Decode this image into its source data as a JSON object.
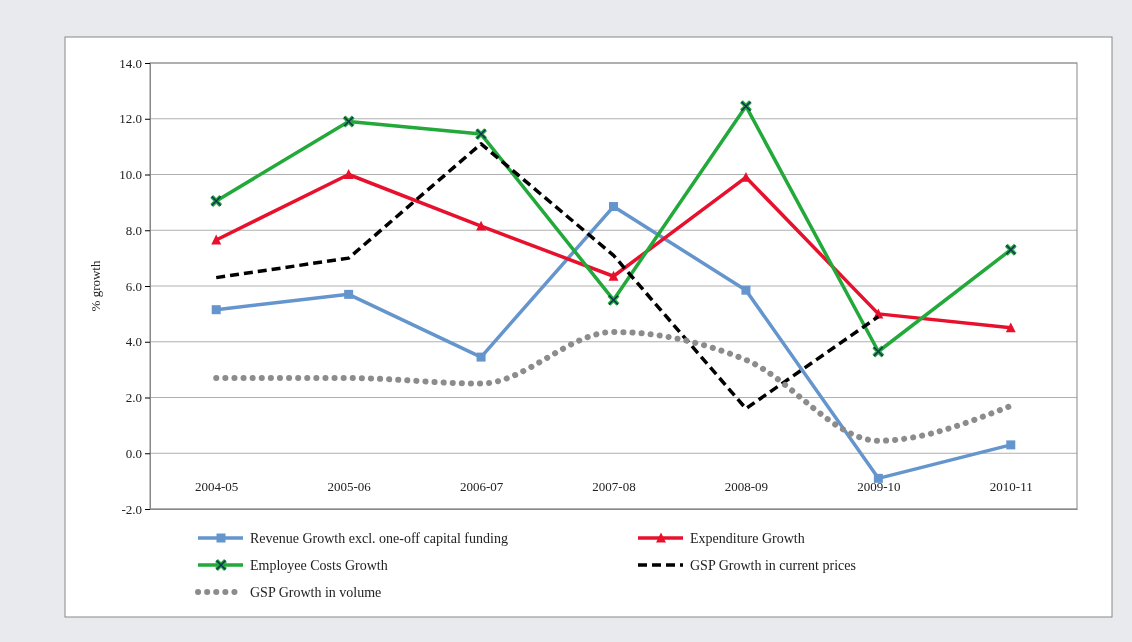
{
  "chart_data": {
    "type": "line",
    "ylabel": "% growth",
    "categories": [
      "2004-05",
      "2005-06",
      "2006-07",
      "2007-08",
      "2008-09",
      "2009-10",
      "2010-11"
    ],
    "series": [
      {
        "name": "Revenue Growth excl. one-off capital funding",
        "color": "#6495cd",
        "marker": "square",
        "line_style": "solid",
        "values": [
          5.15,
          5.7,
          3.45,
          8.85,
          5.85,
          -0.9,
          0.3
        ]
      },
      {
        "name": "Expenditure Growth",
        "color": "#e8112d",
        "marker": "triangle",
        "line_style": "solid",
        "values": [
          7.65,
          10.0,
          8.15,
          6.35,
          9.9,
          5.0,
          4.5
        ]
      },
      {
        "name": "Employee Costs Growth",
        "color": "#22a93a",
        "marker": "cross",
        "line_style": "solid",
        "values": [
          9.05,
          11.9,
          11.45,
          5.5,
          12.45,
          3.65,
          7.3
        ]
      },
      {
        "name": "GSP Growth in current prices",
        "color": "#000000",
        "marker": "none",
        "line_style": "dashed",
        "values": [
          6.3,
          7.0,
          11.1,
          7.1,
          1.6,
          4.9,
          null
        ]
      },
      {
        "name": "GSP Growth in volume",
        "color": "#8c8c8c",
        "marker": "none",
        "line_style": "dotted",
        "values": [
          2.7,
          2.7,
          2.5,
          4.35,
          3.35,
          0.45,
          1.7
        ]
      }
    ],
    "ylim": [
      -2,
      14
    ],
    "yticks": [
      {
        "value": -2,
        "label": "-2.0"
      },
      {
        "value": 0,
        "label": "0.0"
      },
      {
        "value": 2,
        "label": "2.0"
      },
      {
        "value": 4,
        "label": "4.0"
      },
      {
        "value": 6,
        "label": "6.0"
      },
      {
        "value": 8,
        "label": "8.0"
      },
      {
        "value": 10,
        "label": "10.0"
      },
      {
        "value": 12,
        "label": "12.0"
      },
      {
        "value": 14,
        "label": "14.0"
      }
    ],
    "grid": "y",
    "legend": "bottom"
  }
}
